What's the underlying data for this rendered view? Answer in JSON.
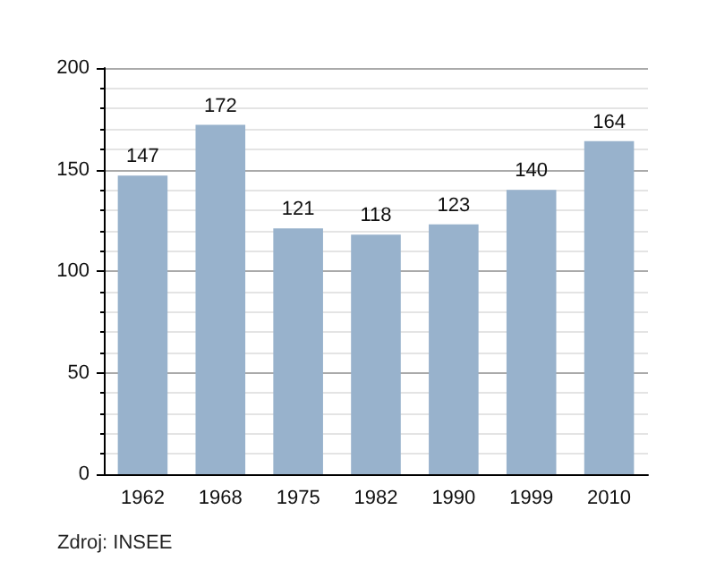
{
  "chart_data": {
    "type": "bar",
    "categories": [
      "1962",
      "1968",
      "1975",
      "1982",
      "1990",
      "1999",
      "2010"
    ],
    "values": [
      147,
      172,
      121,
      118,
      123,
      140,
      164
    ],
    "color": "#98b2cc",
    "ylim": [
      0,
      200
    ],
    "yticks": [
      0,
      50,
      100,
      150,
      200
    ],
    "grid": "y",
    "data_labels": true,
    "annotations": [
      "Zdroj: INSEE"
    ]
  }
}
